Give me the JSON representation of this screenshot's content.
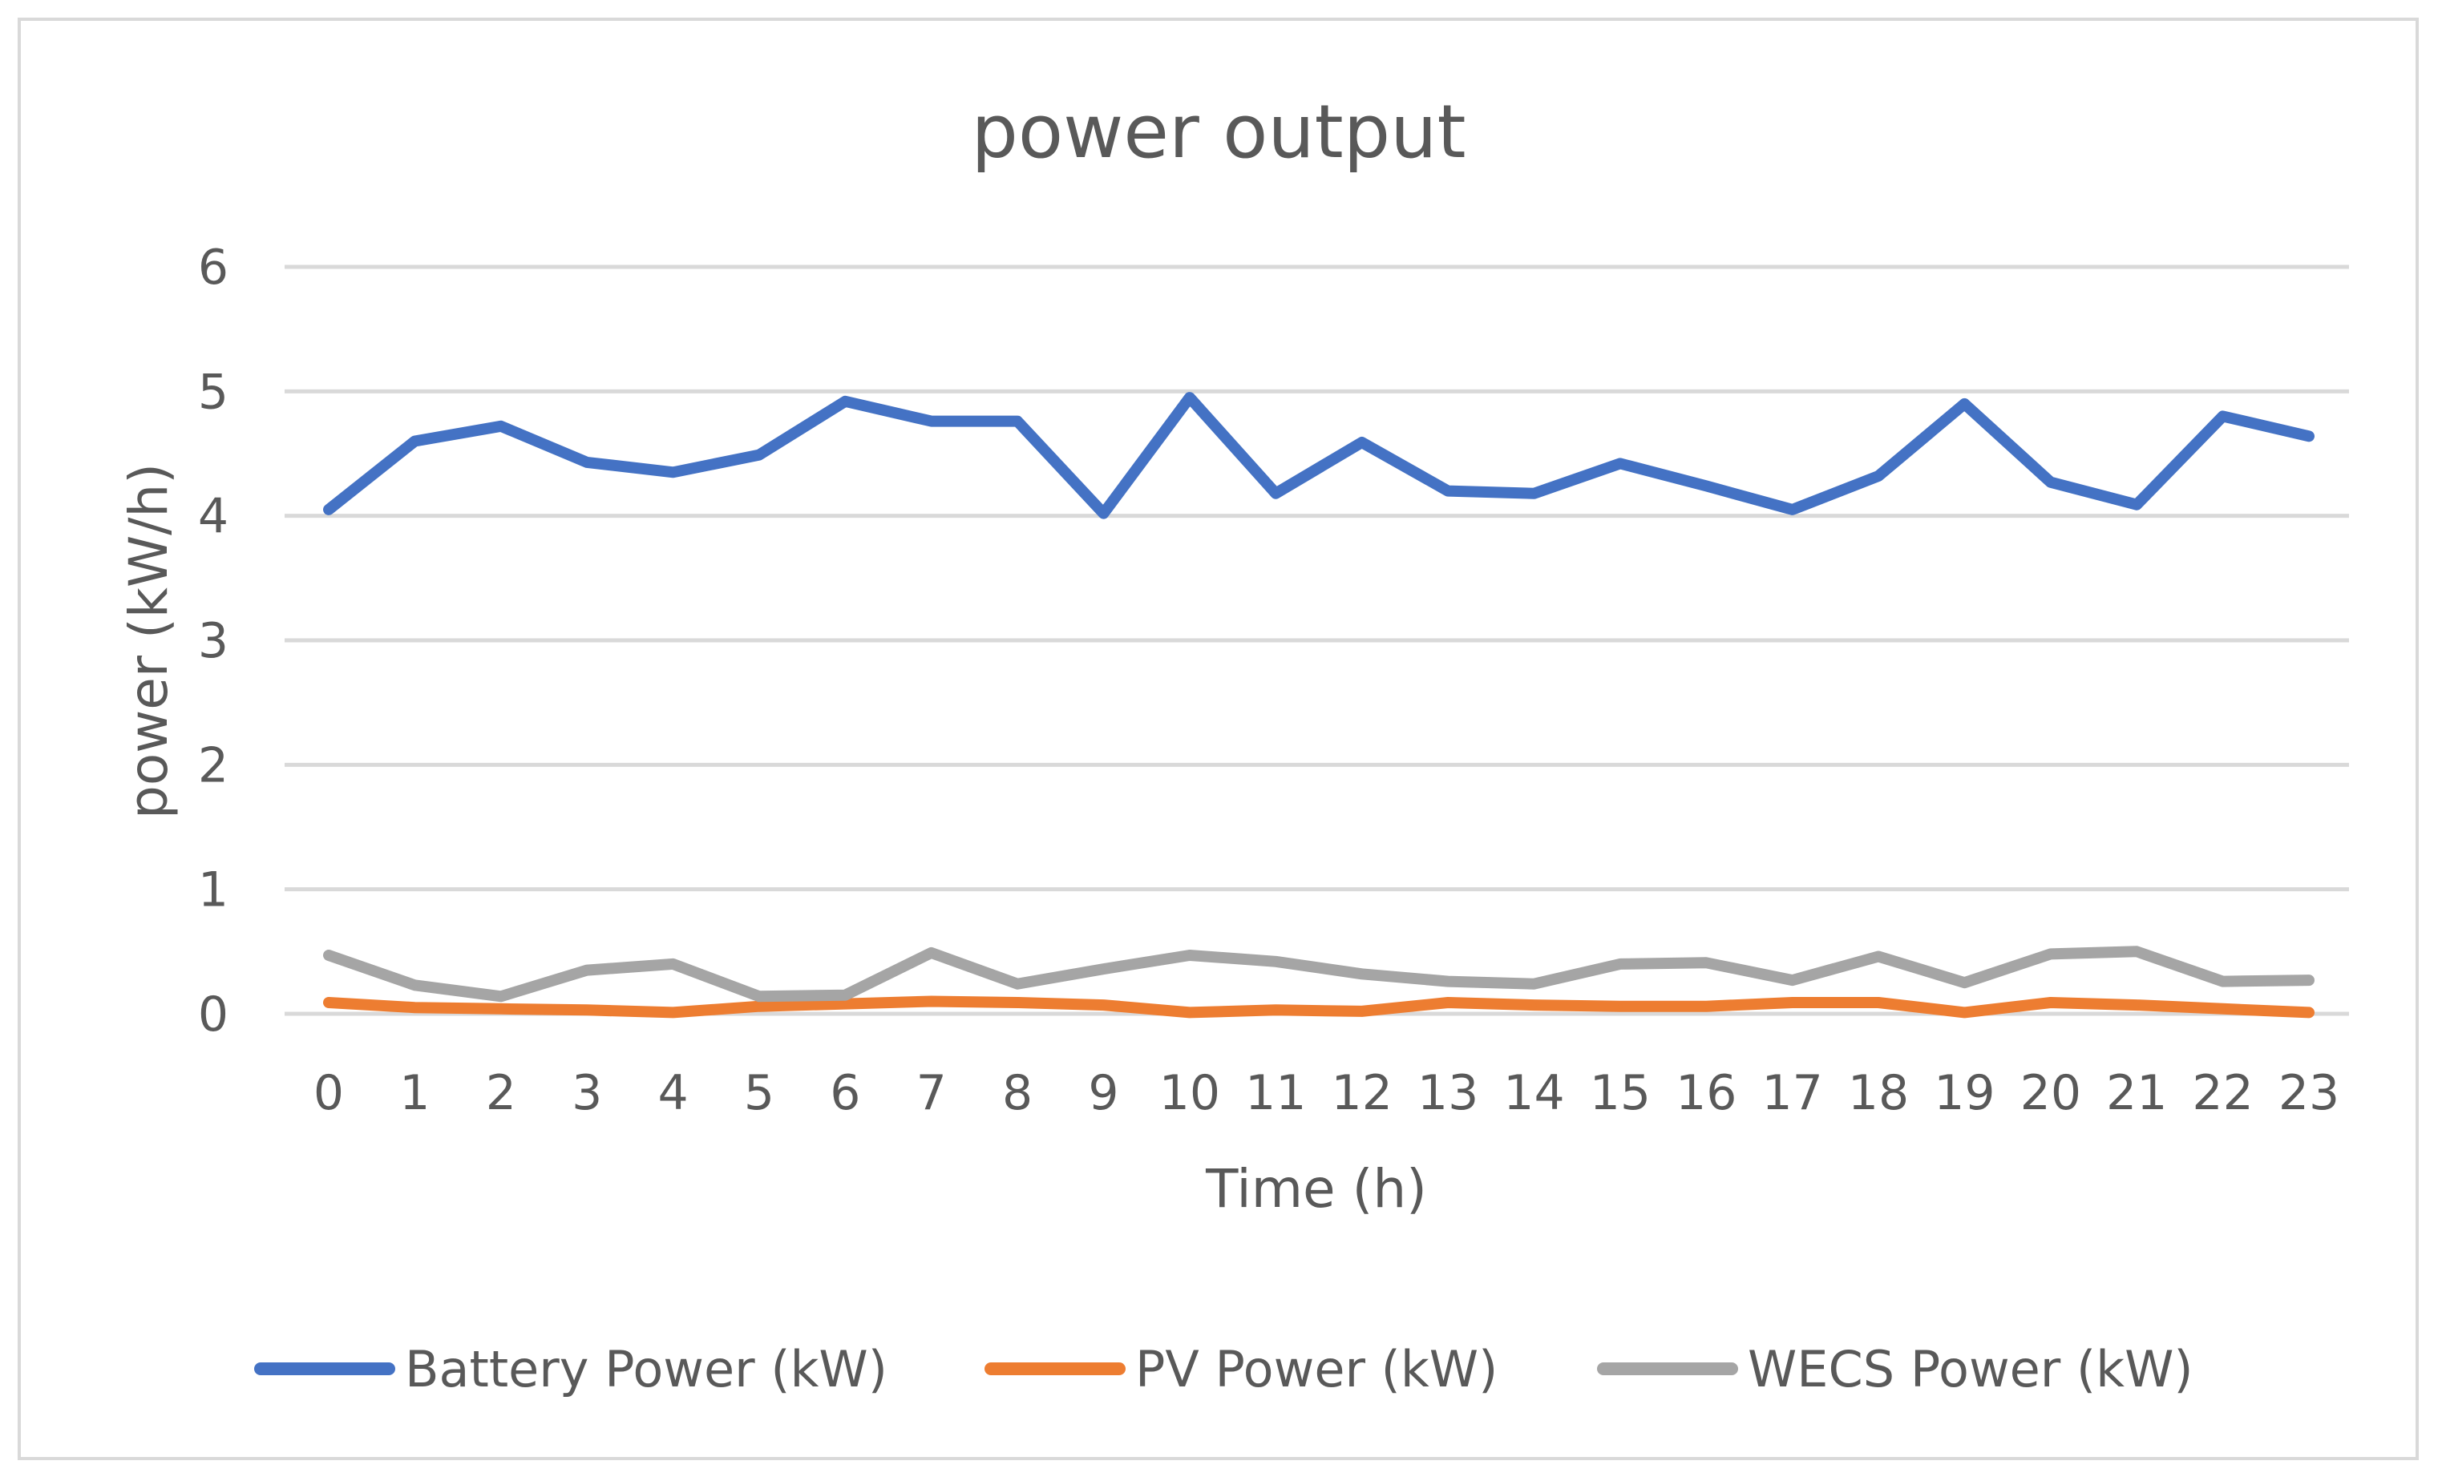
{
  "chart_data": {
    "type": "line",
    "title": "power output",
    "xlabel": "Time (h)",
    "ylabel": "power (kW/h)",
    "x": [
      0,
      1,
      2,
      3,
      4,
      5,
      6,
      7,
      8,
      9,
      10,
      11,
      12,
      13,
      14,
      15,
      16,
      17,
      18,
      19,
      20,
      21,
      22,
      23
    ],
    "ylim": [
      0,
      6
    ],
    "yticks": [
      0,
      1,
      2,
      3,
      4,
      5,
      6
    ],
    "grid": true,
    "legend_position": "bottom",
    "series": [
      {
        "name": "Battery Power (kW)",
        "color": "#4472C4",
        "values": [
          4.05,
          4.6,
          4.72,
          4.43,
          4.35,
          4.49,
          4.92,
          4.76,
          4.76,
          4.02,
          4.95,
          4.18,
          4.59,
          4.2,
          4.18,
          4.42,
          4.24,
          4.05,
          4.32,
          4.9,
          4.27,
          4.09,
          4.8,
          4.64
        ]
      },
      {
        "name": "PV Power (kW)",
        "color": "#ED7D31",
        "values": [
          0.09,
          0.05,
          0.04,
          0.03,
          0.01,
          0.06,
          0.08,
          0.1,
          0.09,
          0.07,
          0.01,
          0.03,
          0.02,
          0.09,
          0.07,
          0.06,
          0.06,
          0.09,
          0.09,
          0.01,
          0.09,
          0.07,
          0.04,
          0.01
        ]
      },
      {
        "name": "WECS Power (kW)",
        "color": "#A5A5A5",
        "values": [
          0.47,
          0.23,
          0.14,
          0.35,
          0.4,
          0.14,
          0.15,
          0.49,
          0.24,
          0.36,
          0.47,
          0.42,
          0.32,
          0.26,
          0.24,
          0.4,
          0.41,
          0.27,
          0.46,
          0.25,
          0.48,
          0.5,
          0.26,
          0.27
        ]
      }
    ]
  }
}
